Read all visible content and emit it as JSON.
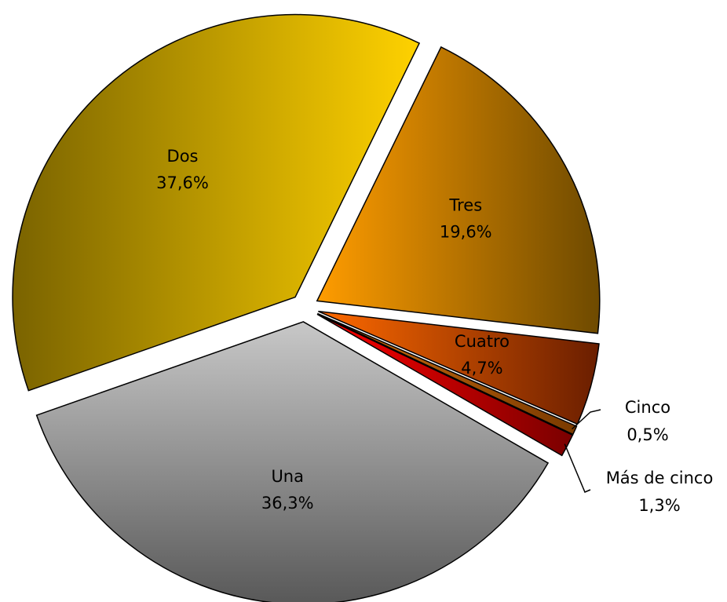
{
  "chart_data": {
    "type": "pie",
    "categories": [
      "Una",
      "Dos",
      "Tres",
      "Cuatro",
      "Cinco",
      "Más de cinco"
    ],
    "values": [
      36.3,
      37.6,
      19.6,
      4.7,
      0.5,
      1.3
    ],
    "value_labels": [
      "36,3%",
      "37,6%",
      "19,6%",
      "4,7%",
      "0,5%",
      "1,3%"
    ],
    "colors": [
      [
        "#c8c8c8",
        "#585858"
      ],
      [
        "#7a6300",
        "#ffd200"
      ],
      [
        "#ff9c00",
        "#6e4a00"
      ],
      [
        "#ff6a00",
        "#6a1e00"
      ],
      [
        "#d07010",
        "#7a3a00"
      ],
      [
        "#ff0000",
        "#7a0000"
      ]
    ]
  }
}
